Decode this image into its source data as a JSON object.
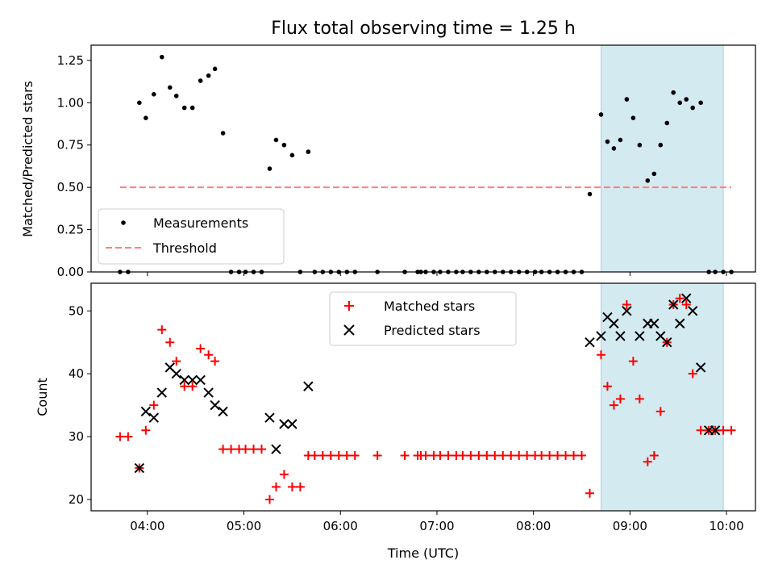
{
  "chart_data": [
    {
      "type": "scatter",
      "title": "Flux total observing time = 1.25 h",
      "xlabel": "",
      "ylabel": "Matched/Predicted stars",
      "ylim": [
        0.0,
        1.34
      ],
      "xlim": [
        "03:25",
        "10:18"
      ],
      "yticks": [
        "0.00",
        "0.25",
        "0.50",
        "0.75",
        "1.00",
        "1.25"
      ],
      "xticks": [
        "04:00",
        "05:00",
        "06:00",
        "07:00",
        "08:00",
        "09:00",
        "10:00"
      ],
      "shaded_interval": {
        "start": "08:42",
        "end": "09:58",
        "color": "#d3eaf0"
      },
      "legend_position": "lower-left",
      "series": [
        {
          "name": "Measurements",
          "kind": "scatter",
          "marker": "dot",
          "color": "#000000",
          "x": [
            "03:43",
            "03:48",
            "03:55",
            "03:59",
            "04:04",
            "04:09",
            "04:14",
            "04:18",
            "04:23",
            "04:28",
            "04:33",
            "04:38",
            "04:42",
            "04:47",
            "04:52",
            "04:57",
            "05:01",
            "05:06",
            "05:11",
            "05:16",
            "05:20",
            "05:25",
            "05:30",
            "05:35",
            "05:40",
            "05:44",
            "05:49",
            "05:54",
            "05:59",
            "06:04",
            "06:09",
            "06:23",
            "06:40",
            "06:48",
            "06:50",
            "06:53",
            "06:58",
            "07:02",
            "07:07",
            "07:12",
            "07:16",
            "07:21",
            "07:26",
            "07:31",
            "07:36",
            "07:41",
            "07:46",
            "07:51",
            "07:56",
            "08:01",
            "08:05",
            "08:10",
            "08:15",
            "08:20",
            "08:25",
            "08:30",
            "08:35",
            "08:42",
            "08:46",
            "08:50",
            "08:54",
            "08:58",
            "09:02",
            "09:06",
            "09:11",
            "09:15",
            "09:19",
            "09:23",
            "09:27",
            "09:31",
            "09:35",
            "09:39",
            "09:44",
            "09:49",
            "09:53",
            "09:58",
            "10:03"
          ],
          "y": [
            0.0,
            0.0,
            1.0,
            0.91,
            1.05,
            1.27,
            1.09,
            1.04,
            0.97,
            0.97,
            1.13,
            1.16,
            1.2,
            0.82,
            0.0,
            0.0,
            0.0,
            0.0,
            0.0,
            0.61,
            0.78,
            0.75,
            0.69,
            0.0,
            0.71,
            0.0,
            0.0,
            0.0,
            0.0,
            0.0,
            0.0,
            0.0,
            0.0,
            0.0,
            0.0,
            0.0,
            0.0,
            0.0,
            0.0,
            0.0,
            0.0,
            0.0,
            0.0,
            0.0,
            0.0,
            0.0,
            0.0,
            0.0,
            0.0,
            0.0,
            0.0,
            0.0,
            0.0,
            0.0,
            0.0,
            0.0,
            0.46,
            0.93,
            0.77,
            0.73,
            0.78,
            1.02,
            0.91,
            0.75,
            0.54,
            0.58,
            0.75,
            0.88,
            1.06,
            1.0,
            1.02,
            0.97,
            1.0,
            0.0,
            0.0,
            0.0,
            0.0
          ]
        },
        {
          "name": "Threshold",
          "kind": "line",
          "style": "dashed",
          "color": "#ff7f7f",
          "x": [
            "03:43",
            "10:03"
          ],
          "y": [
            0.5,
            0.5
          ]
        }
      ]
    },
    {
      "type": "scatter",
      "title": "",
      "xlabel": "Time (UTC)",
      "ylabel": "Count",
      "ylim": [
        18.2,
        54.4
      ],
      "xlim": [
        "03:25",
        "10:18"
      ],
      "yticks": [
        "20",
        "30",
        "40",
        "50"
      ],
      "xticks": [
        "04:00",
        "05:00",
        "06:00",
        "07:00",
        "08:00",
        "09:00",
        "10:00"
      ],
      "shaded_interval": {
        "start": "08:42",
        "end": "09:58",
        "color": "#d3eaf0"
      },
      "legend_position": "upper-center",
      "series": [
        {
          "name": "Matched stars",
          "kind": "scatter",
          "marker": "plus",
          "color": "#ff0000",
          "x": [
            "03:43",
            "03:48",
            "03:55",
            "03:59",
            "04:04",
            "04:09",
            "04:14",
            "04:18",
            "04:23",
            "04:28",
            "04:33",
            "04:38",
            "04:42",
            "04:47",
            "04:52",
            "04:57",
            "05:01",
            "05:06",
            "05:11",
            "05:16",
            "05:20",
            "05:25",
            "05:30",
            "05:35",
            "05:40",
            "05:44",
            "05:49",
            "05:54",
            "05:59",
            "06:04",
            "06:09",
            "06:23",
            "06:40",
            "06:48",
            "06:50",
            "06:53",
            "06:58",
            "07:02",
            "07:07",
            "07:12",
            "07:16",
            "07:21",
            "07:26",
            "07:31",
            "07:36",
            "07:41",
            "07:46",
            "07:51",
            "07:56",
            "08:01",
            "08:05",
            "08:10",
            "08:15",
            "08:20",
            "08:25",
            "08:30",
            "08:35",
            "08:42",
            "08:46",
            "08:50",
            "08:54",
            "08:58",
            "09:02",
            "09:06",
            "09:11",
            "09:15",
            "09:19",
            "09:23",
            "09:27",
            "09:31",
            "09:35",
            "09:39",
            "09:44",
            "09:49",
            "09:53",
            "09:58",
            "10:03"
          ],
          "y": [
            30,
            30,
            25,
            31,
            35,
            47,
            45,
            42,
            38,
            38,
            44,
            43,
            42,
            28,
            28,
            28,
            28,
            28,
            28,
            20,
            22,
            24,
            22,
            22,
            27,
            27,
            27,
            27,
            27,
            27,
            27,
            27,
            27,
            27,
            27,
            27,
            27,
            27,
            27,
            27,
            27,
            27,
            27,
            27,
            27,
            27,
            27,
            27,
            27,
            27,
            27,
            27,
            27,
            27,
            27,
            27,
            21,
            43,
            38,
            35,
            36,
            51,
            42,
            36,
            26,
            27,
            34,
            45,
            51,
            52,
            51,
            40,
            31,
            31,
            31,
            31,
            31
          ]
        },
        {
          "name": "Predicted stars",
          "kind": "scatter",
          "marker": "x",
          "color": "#000000",
          "x": [
            "03:55",
            "03:59",
            "04:04",
            "04:09",
            "04:14",
            "04:18",
            "04:23",
            "04:28",
            "04:33",
            "04:38",
            "04:42",
            "04:47",
            "05:16",
            "05:20",
            "05:25",
            "05:30",
            "05:40",
            "08:35",
            "08:42",
            "08:46",
            "08:50",
            "08:54",
            "08:58",
            "09:06",
            "09:11",
            "09:15",
            "09:19",
            "09:23",
            "09:27",
            "09:31",
            "09:35",
            "09:39",
            "09:44",
            "09:49",
            "09:53"
          ],
          "y": [
            25,
            34,
            33,
            37,
            41,
            40,
            39,
            39,
            39,
            37,
            35,
            34,
            33,
            28,
            32,
            32,
            38,
            45,
            46,
            49,
            48,
            46,
            50,
            46,
            48,
            48,
            46,
            45,
            51,
            48,
            52,
            50,
            41,
            31,
            31
          ]
        }
      ]
    }
  ]
}
